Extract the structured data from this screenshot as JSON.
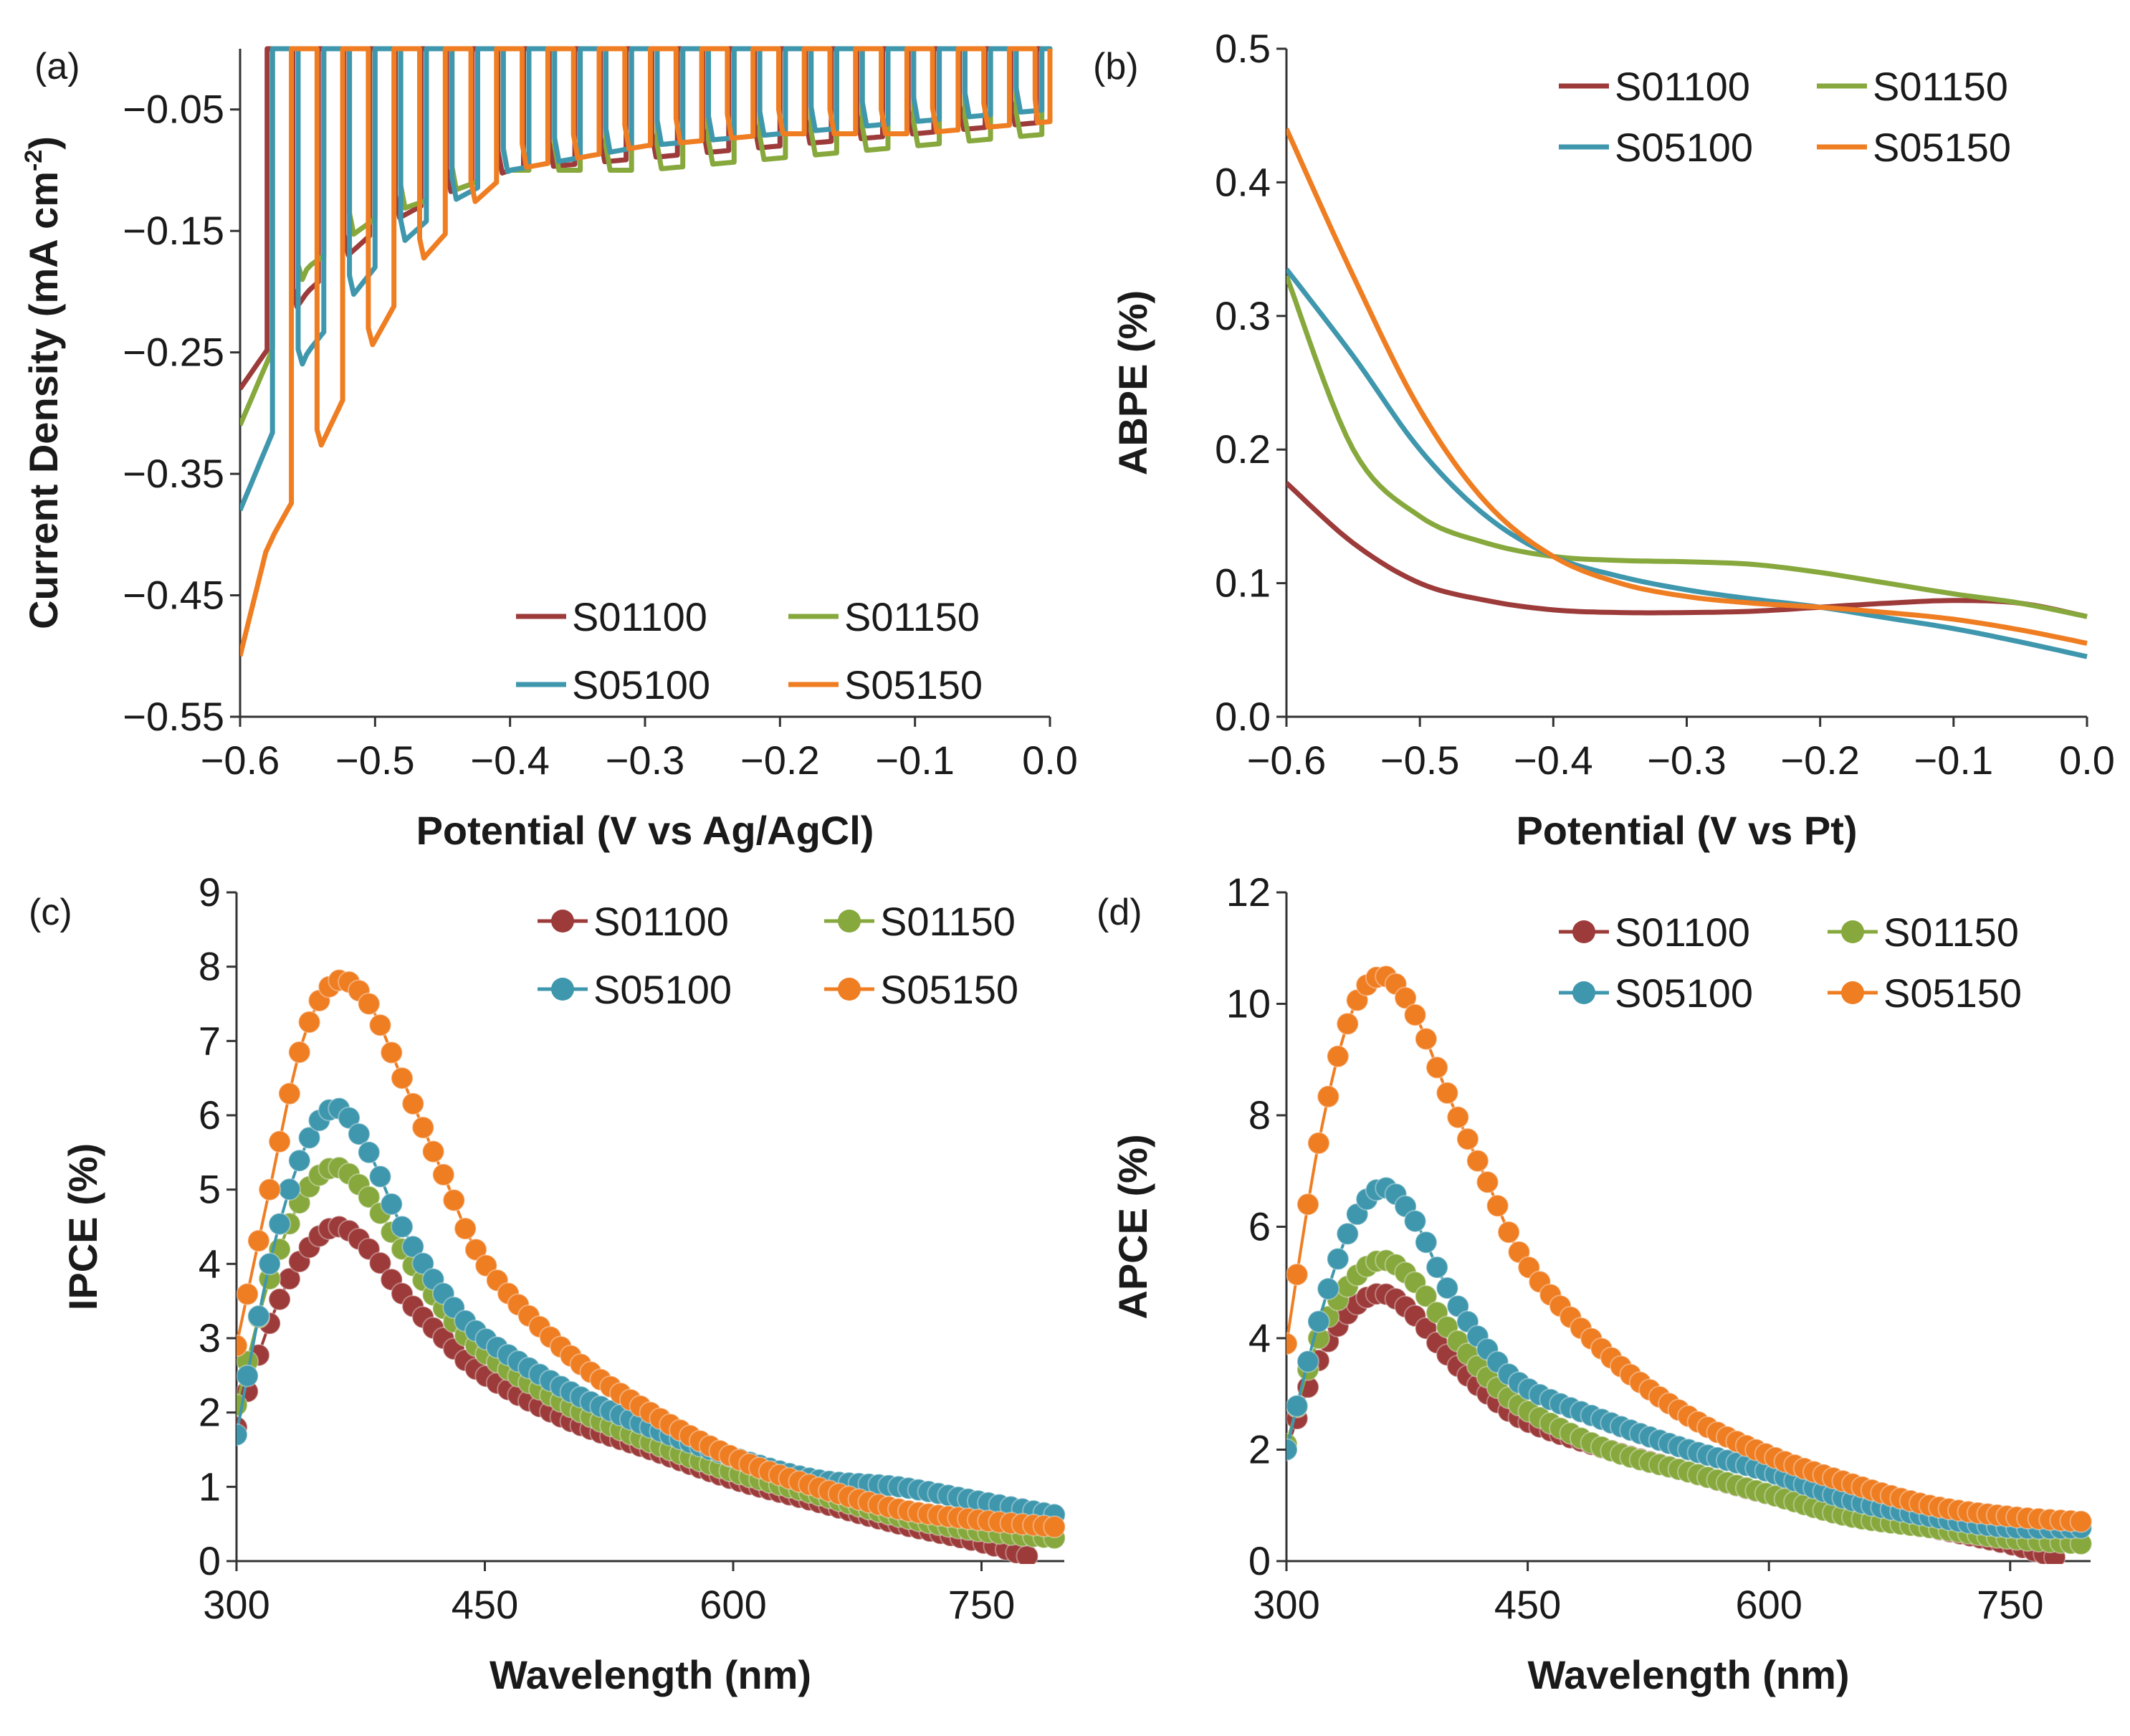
{
  "chart_data": [
    {
      "panel": "(a)",
      "type": "line",
      "xlabel": "Potential (V vs Ag/AgCl)",
      "ylabel_main": "Current Density (mA cm",
      "ylabel_sup": "-2",
      "ylabel_end": ")",
      "xlim": [
        -0.6,
        0.0
      ],
      "ylim": [
        -0.55,
        0.0
      ],
      "xticks": [
        "−0.6",
        "−0.5",
        "−0.4",
        "−0.3",
        "−0.2",
        "−0.1",
        "0.0"
      ],
      "xtick_values": [
        -0.6,
        -0.5,
        -0.4,
        -0.3,
        -0.2,
        -0.1,
        0.0
      ],
      "yticks": [
        "−0.05",
        "−0.15",
        "−0.25",
        "−0.35",
        "−0.45",
        "−0.55"
      ],
      "ytick_values": [
        -0.05,
        -0.15,
        -0.25,
        -0.35,
        -0.45,
        -0.55
      ],
      "legend_position": "bottom-right",
      "note": "chopped-light transient photocurrent; dark current ~0",
      "series": [
        {
          "name": "S01100",
          "color": "#9c3b3a",
          "period": 0.038,
          "phase": 0.02,
          "envelope": [
            [
              -0.6,
              -0.28
            ],
            [
              -0.55,
              -0.2
            ],
            [
              -0.5,
              -0.15
            ],
            [
              -0.45,
              -0.12
            ],
            [
              -0.4,
              -0.1
            ],
            [
              -0.3,
              -0.09
            ],
            [
              -0.2,
              -0.08
            ],
            [
              -0.1,
              -0.07
            ],
            [
              0.0,
              -0.06
            ]
          ]
        },
        {
          "name": "S01150",
          "color": "#86a83c",
          "period": 0.038,
          "phase": 0.02,
          "envelope": [
            [
              -0.6,
              -0.31
            ],
            [
              -0.55,
              -0.18
            ],
            [
              -0.5,
              -0.14
            ],
            [
              -0.45,
              -0.12
            ],
            [
              -0.4,
              -0.1
            ],
            [
              -0.3,
              -0.1
            ],
            [
              -0.2,
              -0.09
            ],
            [
              -0.1,
              -0.08
            ],
            [
              0.0,
              -0.07
            ]
          ]
        },
        {
          "name": "S05100",
          "color": "#3f97ad",
          "period": 0.038,
          "phase": 0.02,
          "envelope": [
            [
              -0.6,
              -0.38
            ],
            [
              -0.57,
              -0.3
            ],
            [
              -0.55,
              -0.25
            ],
            [
              -0.5,
              -0.18
            ],
            [
              -0.45,
              -0.13
            ],
            [
              -0.4,
              -0.1
            ],
            [
              -0.3,
              -0.08
            ],
            [
              -0.2,
              -0.07
            ],
            [
              -0.1,
              -0.06
            ],
            [
              0.0,
              -0.05
            ]
          ]
        },
        {
          "name": "S05150",
          "color": "#ef7d22",
          "period": 0.038,
          "phase": 0.02,
          "envelope": [
            [
              -0.6,
              -0.5
            ],
            [
              -0.58,
              -0.41
            ],
            [
              -0.55,
              -0.35
            ],
            [
              -0.52,
              -0.28
            ],
            [
              -0.5,
              -0.24
            ],
            [
              -0.47,
              -0.18
            ],
            [
              -0.43,
              -0.13
            ],
            [
              -0.4,
              -0.1
            ],
            [
              -0.3,
              -0.08
            ],
            [
              -0.2,
              -0.07
            ],
            [
              -0.1,
              -0.07
            ],
            [
              0.0,
              -0.06
            ]
          ]
        }
      ]
    },
    {
      "panel": "(b)",
      "type": "line",
      "xlabel": "Potential (V vs Pt)",
      "ylabel": "ABPE (%)",
      "xlim": [
        -0.6,
        0.0
      ],
      "ylim": [
        0.0,
        0.5
      ],
      "xticks": [
        "−0.6",
        "−0.5",
        "−0.4",
        "−0.3",
        "−0.2",
        "−0.1",
        "0.0"
      ],
      "xtick_values": [
        -0.6,
        -0.5,
        -0.4,
        -0.3,
        -0.2,
        -0.1,
        0.0
      ],
      "yticks": [
        "0.0",
        "0.1",
        "0.2",
        "0.3",
        "0.4",
        "0.5"
      ],
      "ytick_values": [
        0.0,
        0.1,
        0.2,
        0.3,
        0.4,
        0.5
      ],
      "legend_position": "top-right",
      "series": [
        {
          "name": "S01100",
          "color": "#9c3b3a",
          "x": [
            -0.6,
            -0.55,
            -0.5,
            -0.45,
            -0.4,
            -0.35,
            -0.3,
            -0.25,
            -0.2,
            -0.15,
            -0.1,
            -0.05,
            0.0
          ],
          "y": [
            0.175,
            0.13,
            0.1,
            0.087,
            0.08,
            0.078,
            0.078,
            0.079,
            0.082,
            0.085,
            0.087,
            0.085,
            0.075
          ]
        },
        {
          "name": "S01150",
          "color": "#86a83c",
          "x": [
            -0.6,
            -0.55,
            -0.5,
            -0.45,
            -0.4,
            -0.35,
            -0.3,
            -0.25,
            -0.2,
            -0.15,
            -0.1,
            -0.05,
            0.0
          ],
          "y": [
            0.33,
            0.2,
            0.15,
            0.13,
            0.12,
            0.117,
            0.116,
            0.114,
            0.108,
            0.1,
            0.092,
            0.085,
            0.075
          ]
        },
        {
          "name": "S05100",
          "color": "#3f97ad",
          "x": [
            -0.6,
            -0.55,
            -0.5,
            -0.45,
            -0.4,
            -0.35,
            -0.3,
            -0.25,
            -0.2,
            -0.15,
            -0.1,
            -0.05,
            0.0
          ],
          "y": [
            0.335,
            0.27,
            0.2,
            0.15,
            0.12,
            0.105,
            0.095,
            0.088,
            0.082,
            0.074,
            0.066,
            0.056,
            0.045
          ]
        },
        {
          "name": "S05150",
          "color": "#ef7d22",
          "x": [
            -0.6,
            -0.55,
            -0.5,
            -0.45,
            -0.4,
            -0.35,
            -0.3,
            -0.25,
            -0.2,
            -0.15,
            -0.1,
            -0.05,
            0.0
          ],
          "y": [
            0.44,
            0.33,
            0.23,
            0.16,
            0.12,
            0.1,
            0.09,
            0.085,
            0.082,
            0.078,
            0.073,
            0.065,
            0.055
          ]
        }
      ]
    },
    {
      "panel": "(c)",
      "type": "line",
      "xlabel": "Wavelength (nm)",
      "ylabel": "IPCE (%)",
      "xlim": [
        300,
        800
      ],
      "ylim": [
        0,
        9
      ],
      "xticks": [
        "300",
        "450",
        "600",
        "750"
      ],
      "xtick_values": [
        300,
        450,
        600,
        750
      ],
      "yticks": [
        "0",
        "1",
        "2",
        "3",
        "4",
        "5",
        "6",
        "7",
        "8",
        "9"
      ],
      "ytick_values": [
        0,
        1,
        2,
        3,
        4,
        5,
        6,
        7,
        8,
        9
      ],
      "legend_position": "top-right",
      "markers": true,
      "series": [
        {
          "name": "S01100",
          "color": "#9c3b3a",
          "x": [
            300,
            320,
            340,
            360,
            380,
            400,
            425,
            450,
            500,
            550,
            600,
            650,
            700,
            750,
            780
          ],
          "y": [
            1.8,
            3.2,
            4.1,
            4.5,
            4.2,
            3.6,
            3.0,
            2.5,
            1.9,
            1.5,
            1.1,
            0.8,
            0.5,
            0.25,
            0.05
          ]
        },
        {
          "name": "S01150",
          "color": "#86a83c",
          "x": [
            300,
            320,
            340,
            360,
            380,
            400,
            425,
            450,
            500,
            550,
            600,
            650,
            700,
            750,
            800
          ],
          "y": [
            2.1,
            3.8,
            4.9,
            5.3,
            4.9,
            4.2,
            3.4,
            2.8,
            2.1,
            1.6,
            1.2,
            0.9,
            0.6,
            0.4,
            0.3
          ]
        },
        {
          "name": "S05100",
          "color": "#3f97ad",
          "x": [
            300,
            320,
            340,
            360,
            380,
            400,
            425,
            450,
            500,
            550,
            600,
            650,
            700,
            750,
            800
          ],
          "y": [
            1.7,
            4.0,
            5.5,
            6.1,
            5.5,
            4.5,
            3.6,
            3.0,
            2.3,
            1.8,
            1.4,
            1.1,
            1.0,
            0.8,
            0.6
          ]
        },
        {
          "name": "S05150",
          "color": "#ef7d22",
          "x": [
            300,
            320,
            340,
            360,
            380,
            400,
            425,
            450,
            500,
            550,
            600,
            650,
            700,
            750,
            800
          ],
          "y": [
            2.9,
            5.0,
            7.0,
            7.8,
            7.5,
            6.5,
            5.2,
            4.0,
            2.8,
            2.0,
            1.4,
            1.0,
            0.7,
            0.55,
            0.45
          ]
        }
      ]
    },
    {
      "panel": "(d)",
      "type": "line",
      "xlabel": "Wavelength (nm)",
      "ylabel": "APCE (%)",
      "xlim": [
        300,
        800
      ],
      "ylim": [
        0,
        12
      ],
      "xticks": [
        "300",
        "450",
        "600",
        "750"
      ],
      "xtick_values": [
        300,
        450,
        600,
        750
      ],
      "yticks": [
        "0",
        "2",
        "4",
        "6",
        "8",
        "10",
        "12"
      ],
      "ytick_values": [
        0,
        2,
        4,
        6,
        8,
        10,
        12
      ],
      "legend_position": "top-right",
      "markers": true,
      "series": [
        {
          "name": "S01100",
          "color": "#9c3b3a",
          "x": [
            300,
            320,
            340,
            360,
            380,
            400,
            425,
            450,
            500,
            550,
            600,
            650,
            700,
            750,
            780
          ],
          "y": [
            2.0,
            3.6,
            4.5,
            4.8,
            4.4,
            3.7,
            3.0,
            2.5,
            2.0,
            1.6,
            1.2,
            0.9,
            0.6,
            0.3,
            0.05
          ]
        },
        {
          "name": "S01150",
          "color": "#86a83c",
          "x": [
            300,
            320,
            340,
            360,
            380,
            400,
            425,
            450,
            500,
            550,
            600,
            650,
            700,
            750,
            800
          ],
          "y": [
            2.1,
            4.0,
            5.0,
            5.4,
            5.0,
            4.2,
            3.3,
            2.7,
            2.0,
            1.6,
            1.2,
            0.8,
            0.6,
            0.4,
            0.3
          ]
        },
        {
          "name": "S05100",
          "color": "#3f97ad",
          "x": [
            300,
            320,
            340,
            360,
            380,
            400,
            425,
            450,
            500,
            550,
            600,
            650,
            700,
            750,
            800
          ],
          "y": [
            2.0,
            4.3,
            6.0,
            6.7,
            6.1,
            4.9,
            3.8,
            3.1,
            2.5,
            2.0,
            1.6,
            1.1,
            0.8,
            0.6,
            0.6
          ]
        },
        {
          "name": "S05150",
          "color": "#ef7d22",
          "x": [
            300,
            320,
            340,
            360,
            380,
            400,
            425,
            450,
            500,
            550,
            600,
            650,
            700,
            750,
            800
          ],
          "y": [
            3.9,
            7.5,
            9.8,
            10.5,
            9.8,
            8.4,
            6.8,
            5.3,
            3.7,
            2.6,
            1.9,
            1.4,
            1.0,
            0.8,
            0.7
          ]
        }
      ]
    }
  ]
}
